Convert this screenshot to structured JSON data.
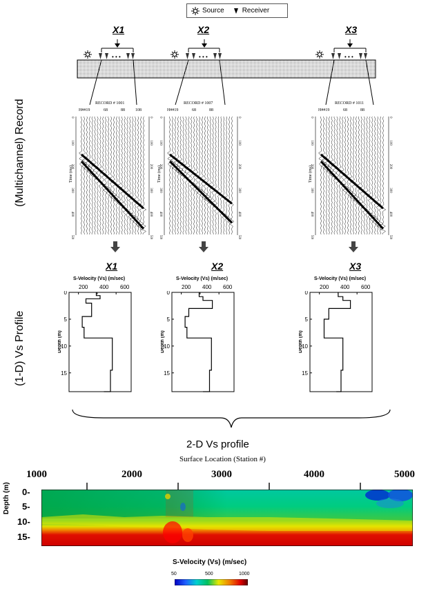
{
  "legend": {
    "source": "Source",
    "receiver": "Receiver"
  },
  "side_labels": {
    "record": "(Multichannel) Record",
    "profile": "(1-D) Vs Profile"
  },
  "positions": [
    "X1",
    "X2",
    "X3"
  ],
  "records": [
    {
      "title": "RECORD # 1001",
      "header": "H##19",
      "top_ticks": [
        "68",
        "88",
        "108"
      ]
    },
    {
      "title": "RECORD # 1007",
      "header": "H##19",
      "top_ticks": [
        "68",
        "88"
      ]
    },
    {
      "title": "RECORD # 1011",
      "header": "H##19",
      "top_ticks": [
        "68",
        "88"
      ]
    }
  ],
  "record_axis": {
    "label": "Time (ms)",
    "ticks": [
      "0",
      "100",
      "200",
      "300",
      "400",
      "500"
    ]
  },
  "vs_profiles": {
    "title": "S-Velocity (Vs) (m/sec)",
    "xticks": [
      "200",
      "400",
      "600"
    ],
    "ylabel": "Depth (m)",
    "yticks": [
      "0",
      "5",
      "10",
      "15"
    ],
    "xlim": [
      100,
      760
    ],
    "ylim": [
      0,
      18.5
    ],
    "layers": [
      [
        [
          390,
          0
        ],
        [
          390,
          0.6
        ],
        [
          430,
          0.6
        ],
        [
          430,
          1.2
        ],
        [
          280,
          1.2
        ],
        [
          280,
          2
        ],
        [
          340,
          2
        ],
        [
          340,
          4.5
        ],
        [
          240,
          4.5
        ],
        [
          240,
          6.5
        ],
        [
          260,
          6.5
        ],
        [
          260,
          8.5
        ],
        [
          560,
          8.5
        ],
        [
          560,
          14.5
        ],
        [
          540,
          14.5
        ],
        [
          540,
          18.5
        ],
        [
          470,
          18.5
        ]
      ],
      [
        [
          390,
          0
        ],
        [
          390,
          0.8
        ],
        [
          430,
          0.8
        ],
        [
          430,
          1.5
        ],
        [
          530,
          1.5
        ],
        [
          530,
          3
        ],
        [
          280,
          3
        ],
        [
          280,
          4.5
        ],
        [
          240,
          4.5
        ],
        [
          240,
          6.5
        ],
        [
          260,
          6.5
        ],
        [
          260,
          8.5
        ],
        [
          520,
          8.5
        ],
        [
          520,
          14.5
        ],
        [
          500,
          14.5
        ],
        [
          500,
          18.5
        ],
        [
          430,
          18.5
        ]
      ],
      [
        [
          400,
          0
        ],
        [
          400,
          0.8
        ],
        [
          450,
          0.8
        ],
        [
          450,
          1.5
        ],
        [
          530,
          1.5
        ],
        [
          530,
          3
        ],
        [
          300,
          3
        ],
        [
          300,
          5
        ],
        [
          250,
          5
        ],
        [
          250,
          8.5
        ],
        [
          450,
          8.5
        ],
        [
          450,
          14.5
        ],
        [
          430,
          14.5
        ],
        [
          430,
          18.5
        ],
        [
          380,
          18.5
        ]
      ]
    ]
  },
  "profile2d": {
    "section_title": "2-D Vs profile",
    "top_label": "Surface Location (Station #)",
    "x_ticks": [
      "1000",
      "2000",
      "3000",
      "4000",
      "5000"
    ],
    "ylabel": "Depth (m)",
    "y_ticks": [
      "0-",
      "5-",
      "10-",
      "15-"
    ],
    "colorbar_title": "S-Velocity (Vs) (m/sec)",
    "colorbar_ticks": [
      "50",
      "500",
      "1000"
    ],
    "colors": {
      "blue": "#1010e0",
      "cyan": "#00d0d0",
      "green": "#00a040",
      "yellow": "#e8e800",
      "orange": "#f08000",
      "red": "#e00000"
    }
  }
}
